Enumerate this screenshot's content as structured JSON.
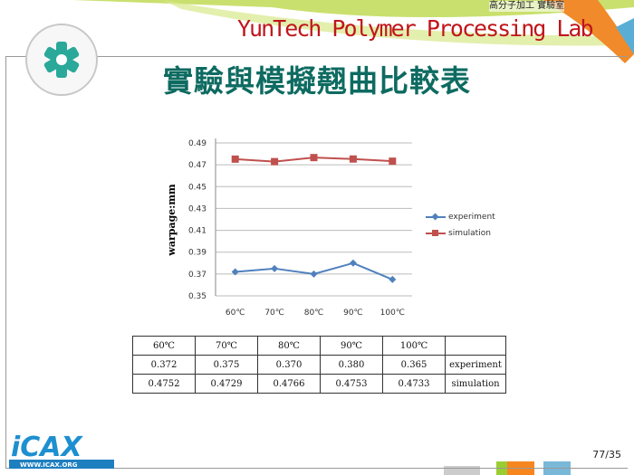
{
  "header": {
    "lab_title": "YunTech Polymer Processing Lab",
    "lab_chinese_name": "高分子加工 實驗室"
  },
  "slide": {
    "title": "實驗與模擬翹曲比較表",
    "page_number": "77/35"
  },
  "logos": {
    "university_seal": "國立雲林科技大學",
    "icax": "ICAX",
    "icax_url": "WWW.ICAX.ORG"
  },
  "colors": {
    "experiment": "#4f81bd",
    "simulation": "#c0504d",
    "title": "#0e6b61",
    "lab_title": "#c0161b"
  },
  "chart_data": {
    "type": "line",
    "ylabel": "warpage:mm",
    "categories": [
      "60℃",
      "70℃",
      "80℃",
      "90℃",
      "100℃"
    ],
    "ylim": [
      0.35,
      0.49
    ],
    "yticks": [
      "0.35",
      "0.37",
      "0.39",
      "0.41",
      "0.43",
      "0.45",
      "0.47",
      "0.49"
    ],
    "grid": true,
    "legend": "right",
    "series": [
      {
        "name": "experiment",
        "marker": "diamond",
        "values": [
          0.372,
          0.375,
          0.37,
          0.38,
          0.365
        ]
      },
      {
        "name": "simulation",
        "marker": "square",
        "values": [
          0.4752,
          0.4729,
          0.4766,
          0.4753,
          0.4733
        ]
      }
    ]
  },
  "table": {
    "header": [
      "60℃",
      "70℃",
      "80℃",
      "90℃",
      "100℃",
      ""
    ],
    "rows": [
      {
        "cells": [
          "0.372",
          "0.375",
          "0.370",
          "0.380",
          "0.365"
        ],
        "label": "experiment"
      },
      {
        "cells": [
          "0.4752",
          "0.4729",
          "0.4766",
          "0.4753",
          "0.4733"
        ],
        "label": "simulation"
      }
    ]
  }
}
